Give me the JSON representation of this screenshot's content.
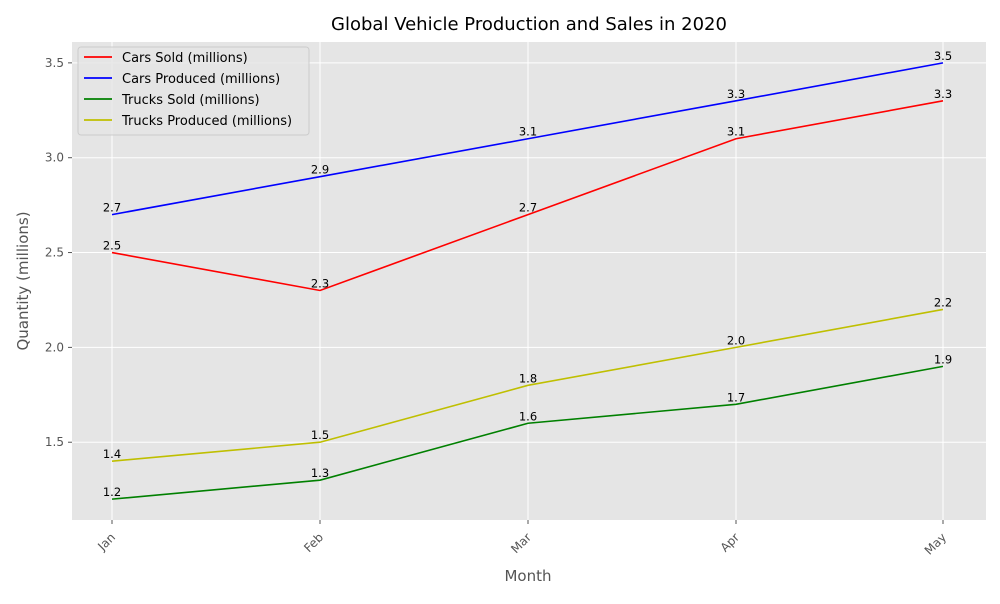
{
  "chart_data": {
    "type": "line",
    "title": "Global Vehicle Production and Sales in 2020",
    "xlabel": "Month",
    "ylabel": "Quantity (millions)",
    "categories": [
      "Jan",
      "Feb",
      "Mar",
      "Apr",
      "May"
    ],
    "ylim": [
      1.09,
      3.61
    ],
    "yticks": [
      1.5,
      2.0,
      2.5,
      3.0,
      3.5
    ],
    "ytick_labels": [
      "1.5",
      "2.0",
      "2.5",
      "3.0",
      "3.5"
    ],
    "grid": true,
    "legend_position": "top-left",
    "series": [
      {
        "name": "Cars Sold (millions)",
        "color": "#ff0000",
        "values": [
          2.5,
          2.3,
          2.7,
          3.1,
          3.3
        ],
        "labels": [
          "2.5",
          "2.3",
          "2.7",
          "3.1",
          "3.3"
        ]
      },
      {
        "name": "Cars Produced (millions)",
        "color": "#0000ff",
        "values": [
          2.7,
          2.9,
          3.1,
          3.3,
          3.5
        ],
        "labels": [
          "2.7",
          "2.9",
          "3.1",
          "3.3",
          "3.5"
        ]
      },
      {
        "name": "Trucks Sold (millions)",
        "color": "#008000",
        "values": [
          1.2,
          1.3,
          1.6,
          1.7,
          1.9
        ],
        "labels": [
          "1.2",
          "1.3",
          "1.6",
          "1.7",
          "1.9"
        ]
      },
      {
        "name": "Trucks Produced (millions)",
        "color": "#bfbf00",
        "values": [
          1.4,
          1.5,
          1.8,
          2.0,
          2.2
        ],
        "labels": [
          "1.4",
          "1.5",
          "1.8",
          "2.0",
          "2.2"
        ]
      }
    ]
  }
}
